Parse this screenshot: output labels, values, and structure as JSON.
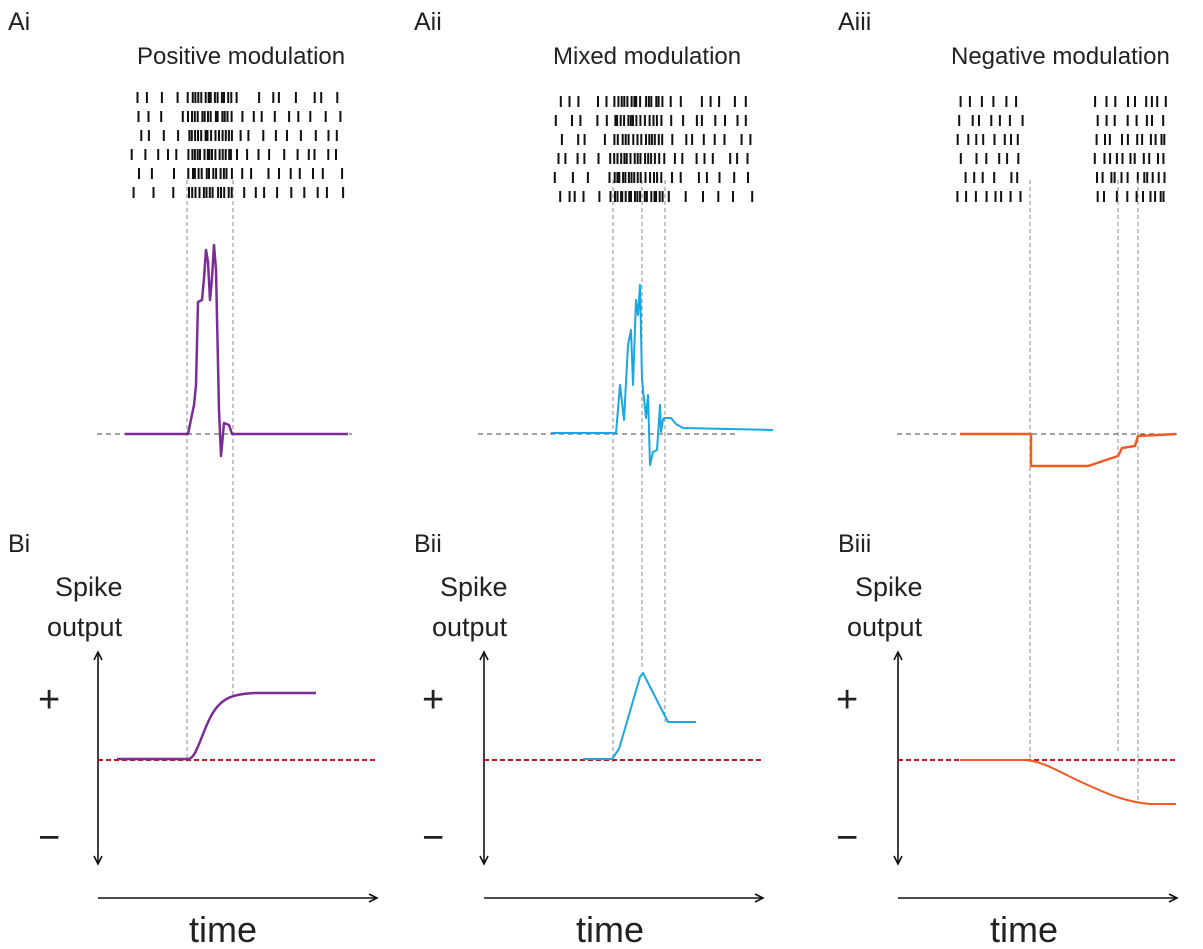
{
  "colors": {
    "positive": "#7b2d97",
    "mixed": "#1aa7e0",
    "negative": "#f15a24",
    "baseline_reference": "#c0182a"
  },
  "panels": [
    {
      "label_a": "Ai",
      "label_b": "Bi",
      "title": "Positive modulation",
      "color_key": "positive",
      "y_label_1": "Spike",
      "y_label_2": "output",
      "plus": "+",
      "minus": "−",
      "x_label": "time"
    },
    {
      "label_a": "Aii",
      "label_b": "Bii",
      "title": "Mixed modulation",
      "color_key": "mixed",
      "y_label_1": "Spike",
      "y_label_2": "output",
      "plus": "+",
      "minus": "−",
      "x_label": "time"
    },
    {
      "label_a": "Aiii",
      "label_b": "Biii",
      "title": "Negative modulation",
      "color_key": "negative",
      "y_label_1": "Spike",
      "y_label_2": "output",
      "plus": "+",
      "minus": "−",
      "x_label": "time"
    }
  ]
}
